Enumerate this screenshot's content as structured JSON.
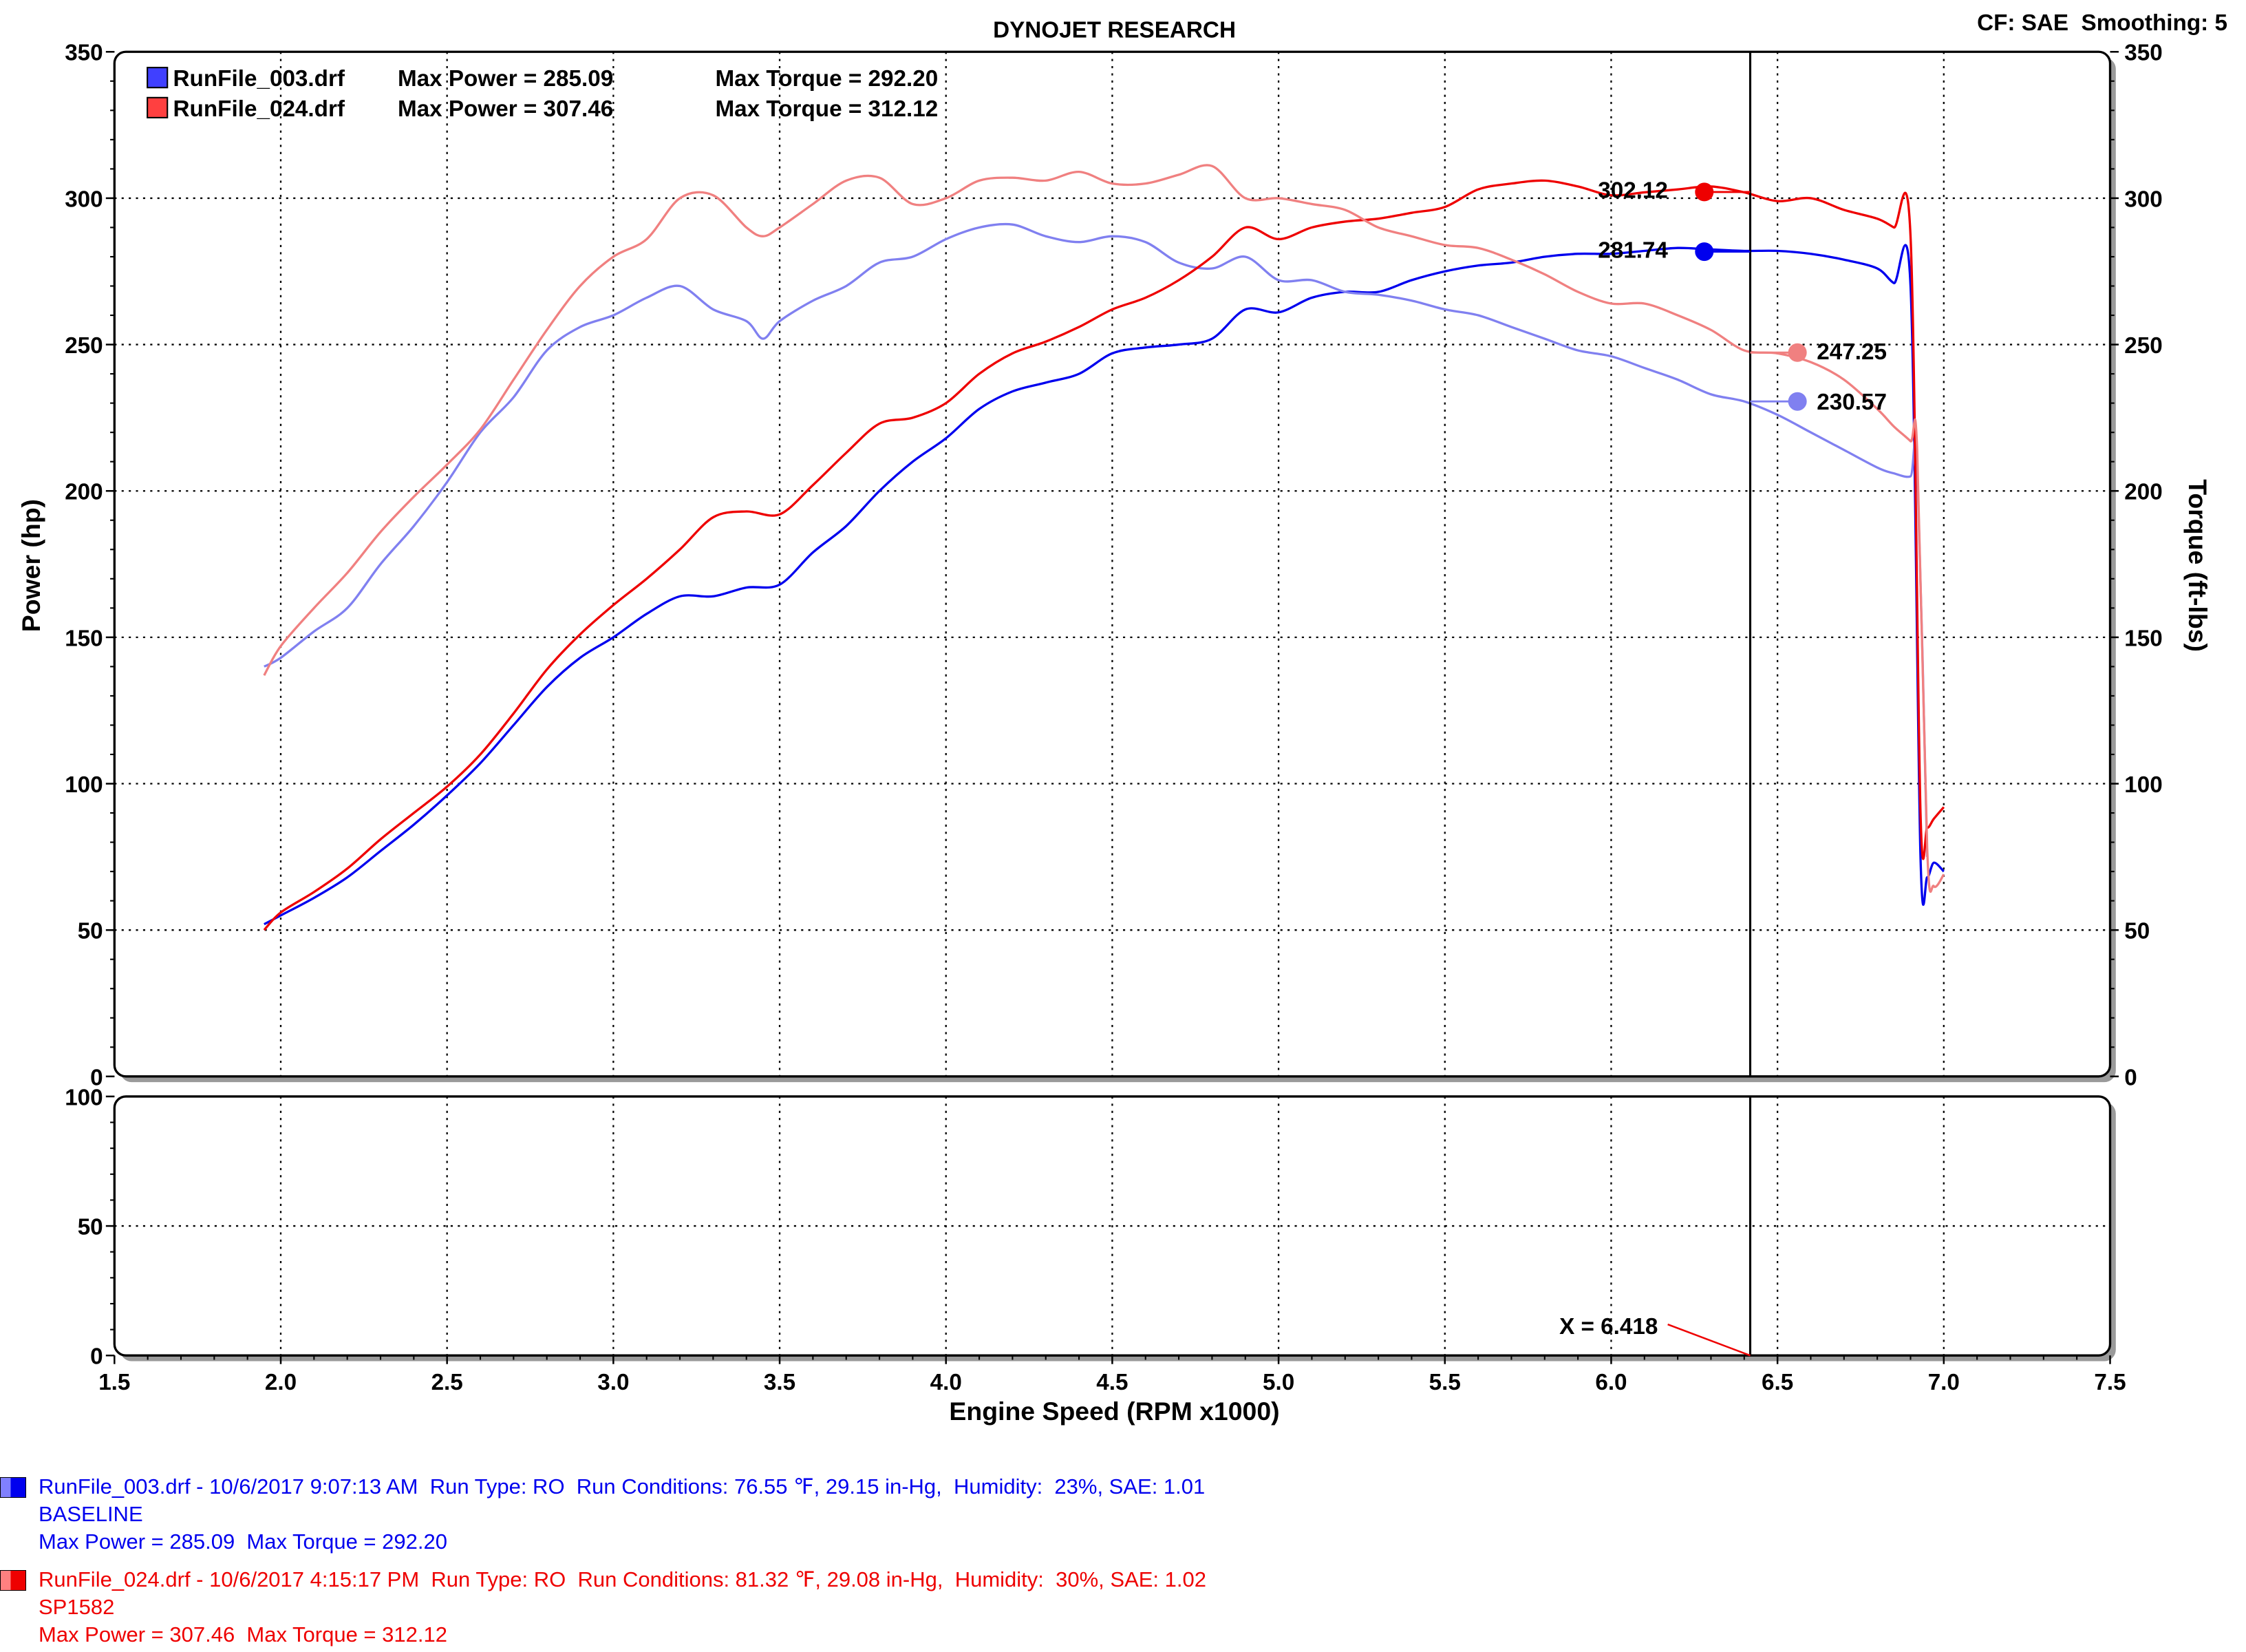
{
  "header": {
    "title": "DYNOJET RESEARCH",
    "settings": "CF: SAE  Smoothing: 5"
  },
  "colors": {
    "run003_power": "#0000ee",
    "run003_torque": "#8080f0",
    "run024_power": "#ee0000",
    "run024_torque": "#f08080"
  },
  "legend": [
    {
      "file": "RunFile_003.drf",
      "max_power_text": "Max Power = 285.09",
      "max_torque_text": "Max Torque = 292.20"
    },
    {
      "file": "RunFile_024.drf",
      "max_power_text": "Max Power = 307.46",
      "max_torque_text": "Max Torque = 312.12"
    }
  ],
  "cursor": {
    "x": 6.418,
    "x_label": "X = 6.418",
    "readouts": [
      "302.12",
      "281.74",
      "247.25",
      "230.57"
    ]
  },
  "chart_data": [
    {
      "type": "line",
      "title": "DYNOJET RESEARCH",
      "xlabel": "Engine Speed (RPM x1000)",
      "ylabel": "Power (hp)",
      "y2label": "Torque (ft-lbs)",
      "xlim": [
        1.5,
        7.5
      ],
      "ylim": [
        0,
        350
      ],
      "y2lim": [
        0,
        350
      ],
      "xticks": [
        "1.5",
        "2.0",
        "2.5",
        "3.0",
        "3.5",
        "4.0",
        "4.5",
        "5.0",
        "5.5",
        "6.0",
        "6.5",
        "7.0",
        "7.5"
      ],
      "yticks": [
        "0",
        "50",
        "100",
        "150",
        "200",
        "250",
        "300",
        "350"
      ],
      "grid": true,
      "legend_position": "top-left",
      "series": [
        {
          "name": "RunFile_003.drf Power",
          "axis": "power",
          "x": [
            1.95,
            2.0,
            2.1,
            2.2,
            2.3,
            2.4,
            2.5,
            2.6,
            2.7,
            2.8,
            2.9,
            3.0,
            3.1,
            3.2,
            3.3,
            3.4,
            3.5,
            3.6,
            3.7,
            3.8,
            3.9,
            4.0,
            4.1,
            4.2,
            4.3,
            4.4,
            4.5,
            4.6,
            4.7,
            4.8,
            4.9,
            5.0,
            5.1,
            5.2,
            5.3,
            5.4,
            5.5,
            5.6,
            5.7,
            5.8,
            5.9,
            6.0,
            6.1,
            6.2,
            6.3,
            6.4,
            6.5,
            6.6,
            6.7,
            6.8,
            6.85,
            6.9,
            6.93,
            6.95,
            6.97,
            7.0
          ],
          "y": [
            52,
            55,
            61,
            68,
            77,
            86,
            96,
            107,
            120,
            133,
            143,
            150,
            158,
            164,
            164,
            167,
            168,
            179,
            188,
            200,
            210,
            218,
            228,
            234,
            237,
            240,
            247,
            249,
            250,
            252,
            262,
            261,
            266,
            268,
            268,
            272,
            275,
            277,
            278,
            280,
            281,
            281,
            282,
            283,
            282.5,
            282,
            282,
            281,
            279,
            276,
            271,
            270,
            75,
            68,
            73,
            70
          ]
        },
        {
          "name": "RunFile_003.drf Torque",
          "axis": "torque",
          "x": [
            1.95,
            2.0,
            2.1,
            2.2,
            2.3,
            2.4,
            2.5,
            2.6,
            2.7,
            2.8,
            2.9,
            3.0,
            3.1,
            3.2,
            3.3,
            3.4,
            3.45,
            3.5,
            3.6,
            3.7,
            3.8,
            3.9,
            4.0,
            4.1,
            4.2,
            4.3,
            4.4,
            4.5,
            4.6,
            4.7,
            4.8,
            4.9,
            5.0,
            5.1,
            5.2,
            5.3,
            5.4,
            5.5,
            5.6,
            5.7,
            5.8,
            5.9,
            6.0,
            6.1,
            6.2,
            6.3,
            6.4,
            6.5,
            6.6,
            6.7,
            6.8,
            6.85,
            6.9,
            6.92,
            6.95
          ],
          "y": [
            140,
            143,
            152,
            160,
            175,
            188,
            203,
            220,
            232,
            248,
            256,
            260,
            266,
            270,
            262,
            258,
            252,
            258,
            265,
            270,
            278,
            280,
            286,
            290,
            291,
            287,
            285,
            287,
            285,
            278,
            276,
            280,
            272,
            272,
            268,
            267,
            265,
            262,
            260,
            256,
            252,
            248,
            246,
            242,
            238,
            233,
            230.57,
            226,
            220,
            214,
            208,
            206,
            205,
            210,
            75
          ]
        },
        {
          "name": "RunFile_024.drf Power",
          "axis": "power",
          "x": [
            1.95,
            2.0,
            2.1,
            2.2,
            2.3,
            2.4,
            2.5,
            2.6,
            2.7,
            2.8,
            2.9,
            3.0,
            3.1,
            3.2,
            3.3,
            3.4,
            3.5,
            3.6,
            3.7,
            3.8,
            3.9,
            4.0,
            4.1,
            4.2,
            4.3,
            4.4,
            4.5,
            4.6,
            4.7,
            4.8,
            4.9,
            5.0,
            5.1,
            5.2,
            5.3,
            5.4,
            5.5,
            5.6,
            5.7,
            5.8,
            5.9,
            6.0,
            6.1,
            6.2,
            6.3,
            6.4,
            6.5,
            6.6,
            6.7,
            6.8,
            6.85,
            6.9,
            6.93,
            6.95,
            6.97,
            7.0
          ],
          "y": [
            50,
            56,
            63,
            71,
            81,
            90,
            99,
            110,
            124,
            139,
            151,
            161,
            170,
            180,
            191,
            193,
            192,
            202,
            213,
            223,
            225,
            230,
            240,
            247,
            251,
            256,
            262,
            266,
            272,
            280,
            290,
            286,
            290,
            292,
            293,
            295,
            297,
            303,
            305,
            306,
            304,
            301,
            302,
            303,
            304,
            302,
            299,
            300,
            296,
            293,
            290,
            287,
            90,
            85,
            88,
            92
          ]
        },
        {
          "name": "RunFile_024.drf Torque",
          "axis": "torque",
          "x": [
            1.95,
            2.0,
            2.1,
            2.2,
            2.3,
            2.4,
            2.5,
            2.6,
            2.7,
            2.8,
            2.9,
            3.0,
            3.1,
            3.2,
            3.3,
            3.4,
            3.45,
            3.5,
            3.6,
            3.7,
            3.8,
            3.9,
            4.0,
            4.1,
            4.2,
            4.3,
            4.4,
            4.5,
            4.6,
            4.7,
            4.8,
            4.9,
            5.0,
            5.1,
            5.2,
            5.3,
            5.4,
            5.5,
            5.6,
            5.7,
            5.8,
            5.9,
            6.0,
            6.1,
            6.2,
            6.3,
            6.4,
            6.5,
            6.6,
            6.7,
            6.8,
            6.85,
            6.9,
            6.92,
            6.95,
            6.97,
            7.0
          ],
          "y": [
            137,
            147,
            160,
            172,
            186,
            198,
            209,
            221,
            238,
            255,
            270,
            280,
            286,
            300,
            301,
            290,
            287,
            290,
            298,
            306,
            307,
            298,
            300,
            306,
            307,
            306,
            309,
            305,
            305,
            308,
            311,
            300,
            300,
            298,
            296,
            290,
            287,
            284,
            283,
            279,
            274,
            268,
            264,
            264,
            260,
            255,
            248,
            247,
            244,
            238,
            228,
            222,
            217,
            214,
            78,
            65,
            69
          ]
        }
      ]
    },
    {
      "type": "line",
      "xlim": [
        1.5,
        7.5
      ],
      "ylim": [
        0,
        100
      ],
      "yticks": [
        "0",
        "50",
        "100"
      ],
      "grid": true,
      "series": []
    }
  ],
  "run_info": [
    {
      "line1": "RunFile_003.drf - 10/6/2017 9:07:13 AM  Run Type: RO  Run Conditions: 76.55 ℉, 29.15 in-Hg,  Humidity:  23%, SAE: 1.01",
      "line2": "BASELINE",
      "line3": "Max Power = 285.09  Max Torque = 292.20"
    },
    {
      "line1": "RunFile_024.drf - 10/6/2017 4:15:17 PM  Run Type: RO  Run Conditions: 81.32 ℉, 29.08 in-Hg,  Humidity:  30%, SAE: 1.02",
      "line2": "SP1582",
      "line3": "Max Power = 307.46  Max Torque = 312.12"
    }
  ]
}
